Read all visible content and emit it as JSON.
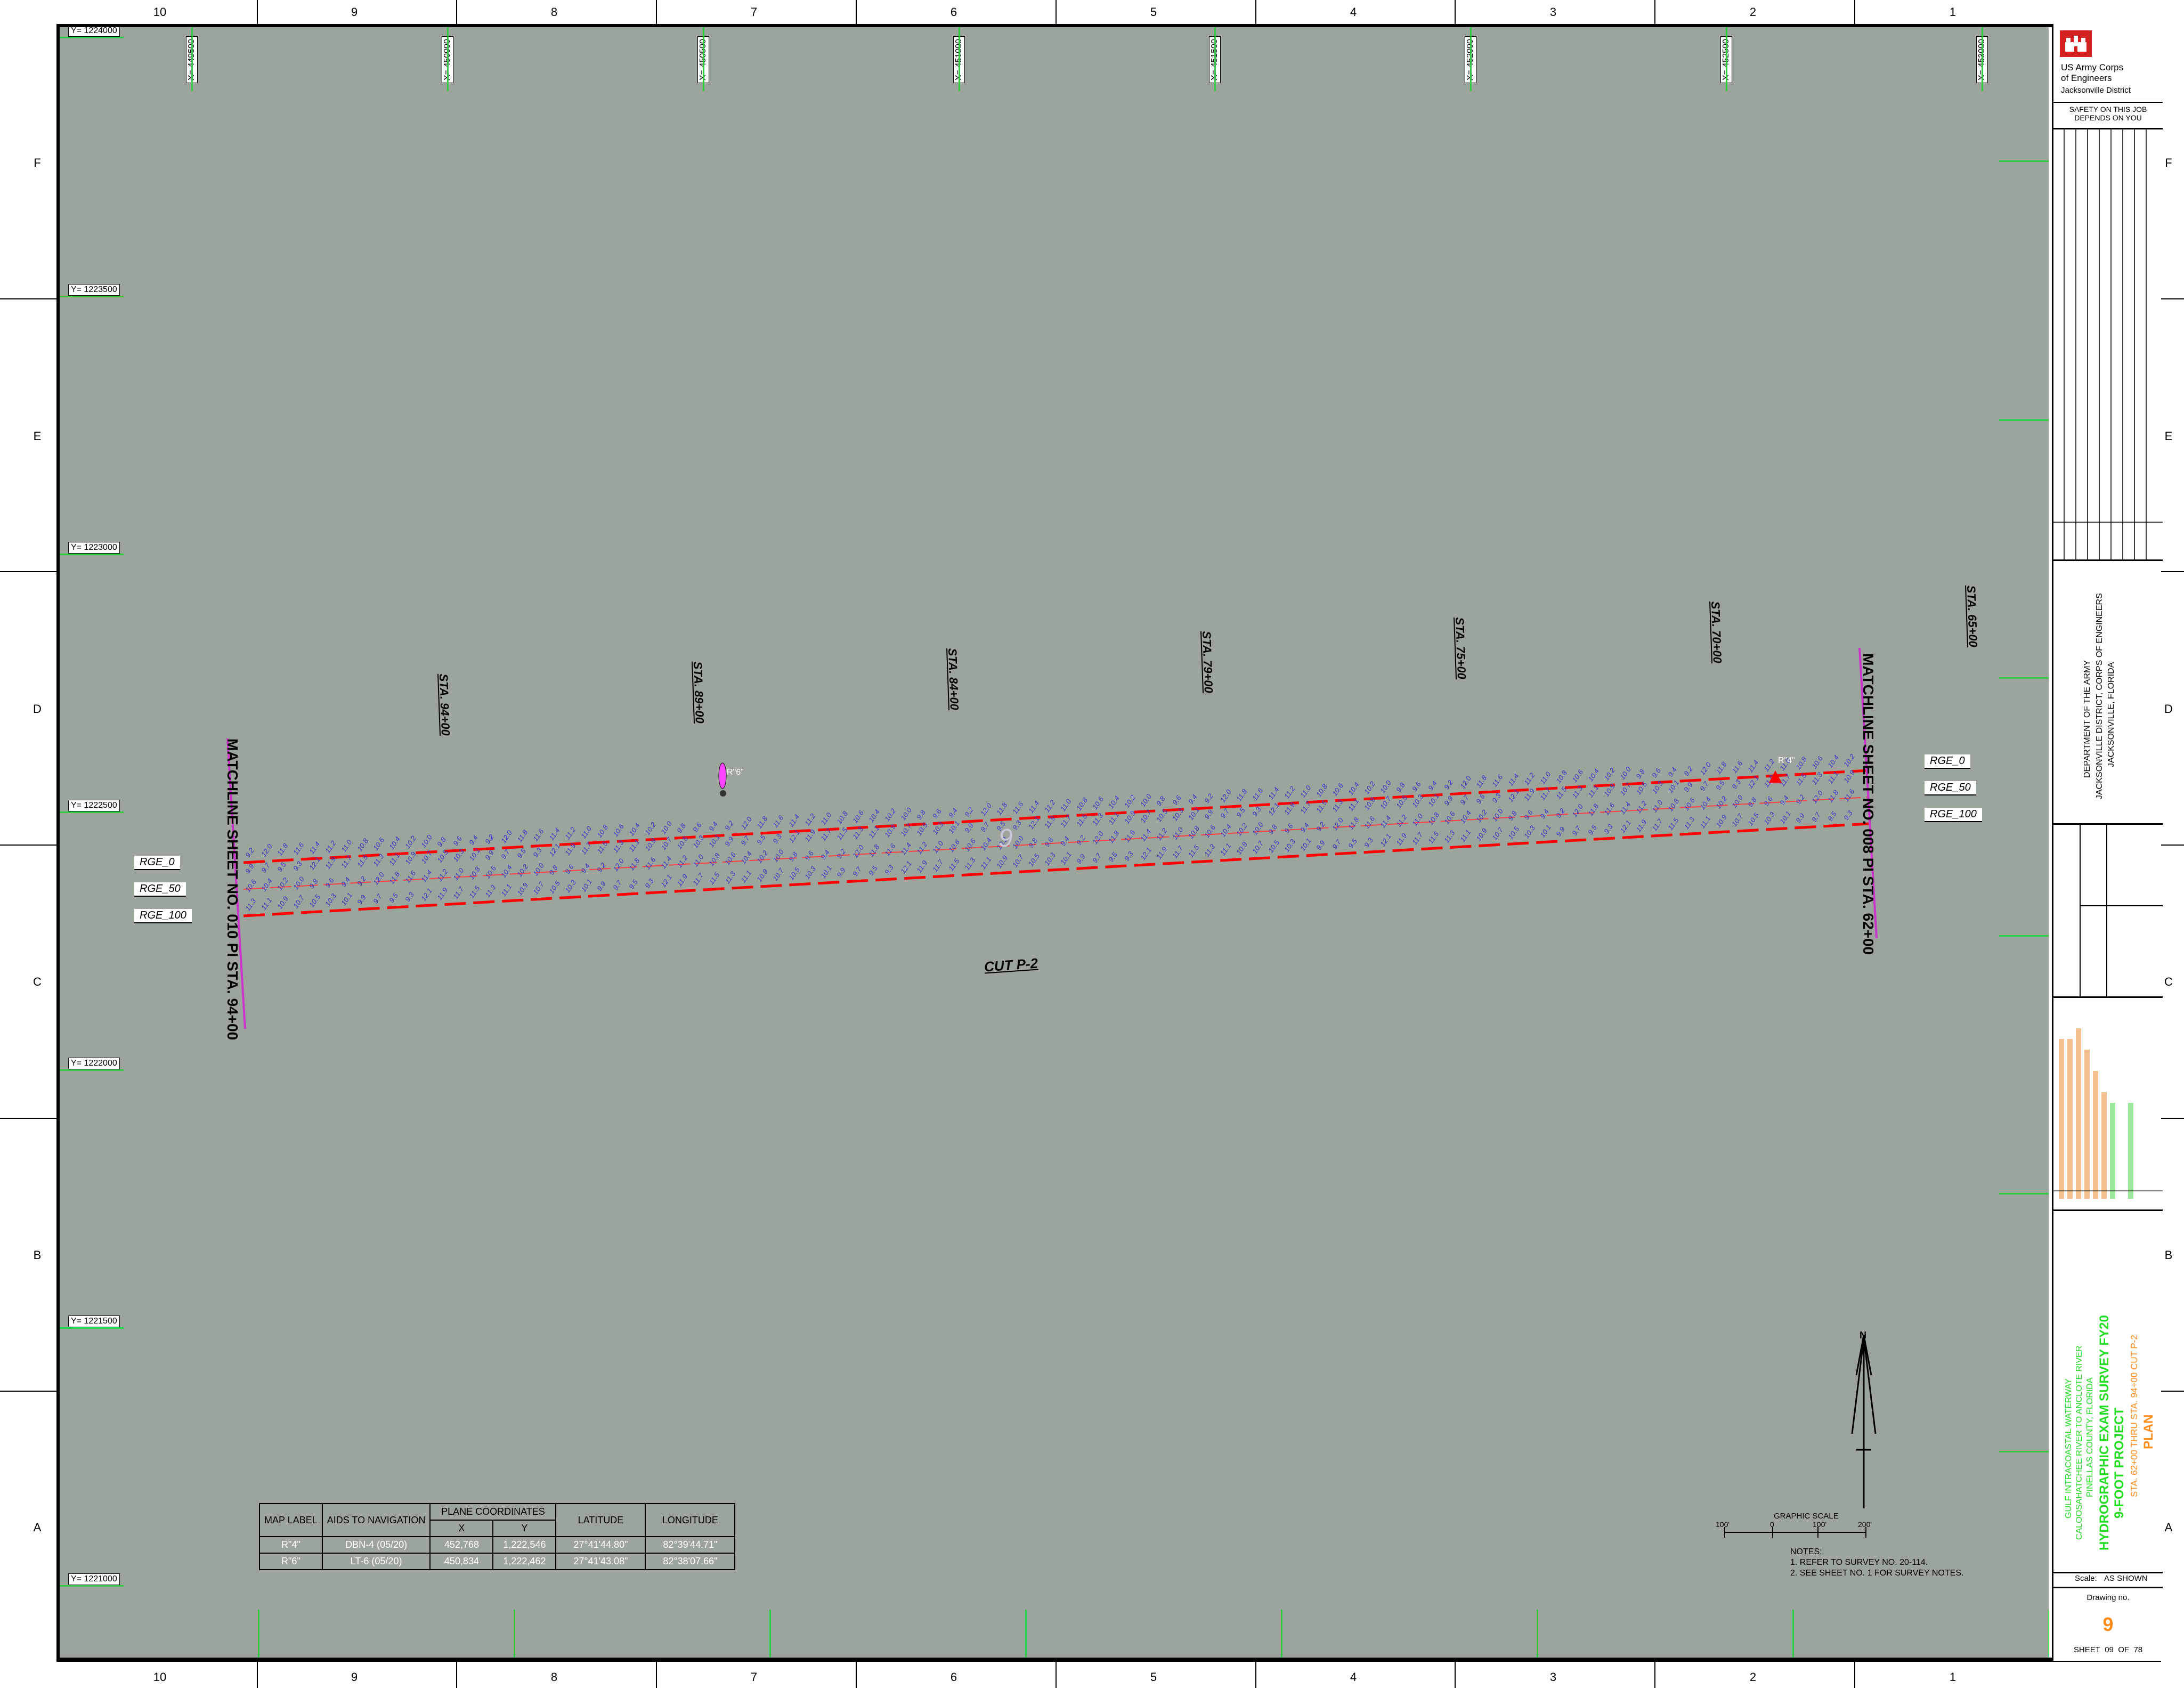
{
  "zones": {
    "columns": [
      "10",
      "9",
      "8",
      "7",
      "6",
      "5",
      "4",
      "3",
      "2",
      "1"
    ],
    "rows": [
      "F",
      "E",
      "D",
      "C",
      "B",
      "A"
    ]
  },
  "grid": {
    "x_labels": [
      "X= 449500",
      "X= 450000",
      "X= 450500",
      "X= 451000",
      "X= 451500",
      "X= 452000",
      "X= 452500",
      "X= 453000"
    ],
    "y_labels": [
      "Y= 1224000",
      "Y= 1223500",
      "Y= 1223000",
      "Y= 1222500",
      "Y= 1222000",
      "Y= 1221500",
      "Y= 1221000"
    ]
  },
  "stations": [
    "STA. 94+00",
    "STA. 89+00",
    "STA. 84+00",
    "STA. 79+00",
    "STA. 75+00",
    "STA. 70+00",
    "STA. 65+00"
  ],
  "matchlines": {
    "left": "MATCHLINE SHEET NO. 010 PI STA. 94+00",
    "right": "MATCHLINE SHEET NO. 008 PI STA. 62+00"
  },
  "ranges": {
    "left": [
      "RGE_0",
      "RGE_50",
      "RGE_100"
    ],
    "right": [
      "RGE_0",
      "RGE_50",
      "RGE_100"
    ]
  },
  "markers": {
    "r6": "R\"6\"",
    "r4": "R\"4\""
  },
  "cut_label": "CUT P-2",
  "sheet_watermark": "9",
  "aids_table": {
    "headers": {
      "map_label": "MAP LABEL",
      "aids": "AIDS TO NAVIGATION",
      "plane": "PLANE COORDINATES",
      "x": "X",
      "y": "Y",
      "lat": "LATITUDE",
      "lon": "LONGITUDE"
    },
    "rows": [
      {
        "label": "R\"4\"",
        "aid": "DBN-4 (05/20)",
        "x": "452,768",
        "y": "1,222,546",
        "lat": "27°41'44.80\"",
        "lon": "82°39'44.71\""
      },
      {
        "label": "R\"6\"",
        "aid": "LT-6 (05/20)",
        "x": "450,834",
        "y": "1,222,462",
        "lat": "27°41'43.08\"",
        "lon": "82°38'07.66\""
      }
    ]
  },
  "scale": {
    "title": "GRAPHIC SCALE",
    "ticks": [
      "100'",
      "0",
      "100'",
      "200'"
    ],
    "north": "N"
  },
  "notes": {
    "title": "NOTES:",
    "items": [
      "1. REFER TO SURVEY NO. 20-114.",
      "2. SEE SHEET NO. 1 FOR SURVEY NOTES."
    ]
  },
  "title_block": {
    "org1": "US Army Corps",
    "org2": "of Engineers",
    "district": "Jacksonville District",
    "safety": "SAFETY ON THIS JOB DEPENDS ON YOU",
    "dept1": "DEPARTMENT OF THE ARMY",
    "dept2": "JACKSONVILLE DISTRICT, CORPS OF ENGINEERS",
    "dept3": "JACKSONVILLE, FLORIDA",
    "project1": "GULF INTRACOASTAL WATERWAY",
    "project2": "CALOOSAHATCHEE RIVER TO ANCLOTE RIVER",
    "project3": "PINELLAS COUNTY, FLORIDA",
    "survey": "HYDROGRAPHIC EXAM SURVEY FY20",
    "project_name": "9-FOOT PROJECT",
    "sta_range": "STA. 62+00 THRU STA. 94+00 CUT P-2",
    "plan": "PLAN",
    "scale_label": "Scale:",
    "scale_value": "AS SHOWN",
    "drawing_no_label": "Drawing no.",
    "drawing_no": "9",
    "sheet_label": "SHEET",
    "sheet_no": "09",
    "of_label": "OF",
    "sheet_total": "78"
  },
  "colors": {
    "water": "#9ca59c",
    "channel": "#ff0000",
    "soundings": "#3333cc",
    "grid": "#2ecc40",
    "matchline": "#cc33cc",
    "accent_orange": "#ff8c1a",
    "accent_green": "#22dd22"
  }
}
